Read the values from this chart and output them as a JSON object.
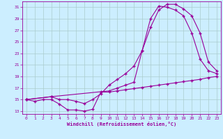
{
  "bg_color": "#cceeff",
  "line_color": "#990099",
  "grid_color": "#aacccc",
  "xlabel": "Windchill (Refroidissement éolien,°C)",
  "xlabel_color": "#990099",
  "tick_color": "#990099",
  "xlim": [
    -0.5,
    23.5
  ],
  "ylim": [
    12.5,
    32.0
  ],
  "yticks": [
    13,
    15,
    17,
    19,
    21,
    23,
    25,
    27,
    29,
    31
  ],
  "xticks": [
    0,
    1,
    2,
    3,
    4,
    5,
    6,
    7,
    8,
    9,
    10,
    11,
    12,
    13,
    14,
    15,
    16,
    17,
    18,
    19,
    20,
    21,
    22,
    23
  ],
  "line1_x": [
    0,
    1,
    2,
    3,
    4,
    5,
    6,
    7,
    8,
    9,
    10,
    11,
    12,
    13,
    14,
    15,
    16,
    17,
    18,
    19,
    20,
    21,
    22,
    23
  ],
  "line1_y": [
    15.0,
    14.7,
    15.0,
    15.0,
    14.2,
    13.2,
    13.2,
    13.0,
    13.3,
    16.3,
    16.3,
    16.5,
    16.7,
    16.9,
    17.1,
    17.3,
    17.5,
    17.7,
    17.9,
    18.1,
    18.3,
    18.5,
    18.8,
    19.0
  ],
  "line2_x": [
    0,
    3,
    4,
    5,
    6,
    7,
    8,
    9,
    10,
    11,
    12,
    13,
    14,
    15,
    16,
    17,
    18,
    19,
    20,
    21,
    22,
    23
  ],
  "line2_y": [
    15.0,
    15.5,
    15.0,
    15.0,
    14.7,
    14.3,
    15.0,
    16.0,
    17.5,
    18.5,
    19.5,
    20.8,
    23.5,
    27.5,
    30.5,
    31.5,
    31.5,
    30.7,
    29.5,
    26.5,
    21.5,
    20.0
  ],
  "line3_x": [
    0,
    3,
    10,
    11,
    12,
    13,
    14,
    15,
    16,
    17,
    18,
    19,
    20,
    21,
    22,
    23
  ],
  "line3_y": [
    15.0,
    15.5,
    16.5,
    17.0,
    17.5,
    18.0,
    23.5,
    29.0,
    31.2,
    31.0,
    30.5,
    29.5,
    26.5,
    22.0,
    20.0,
    19.5
  ]
}
